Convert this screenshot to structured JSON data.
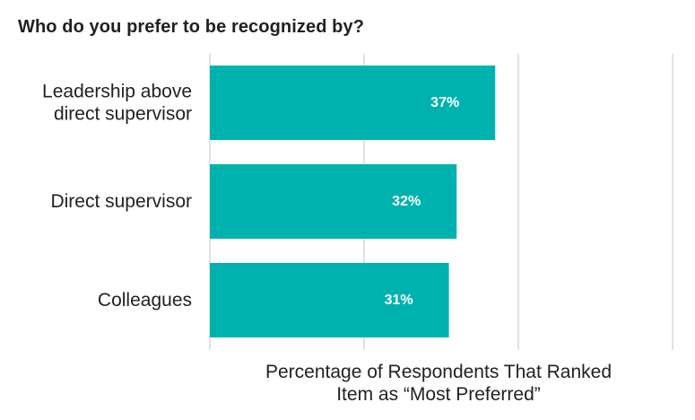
{
  "chart_data": {
    "type": "bar",
    "orientation": "horizontal",
    "title": "Who do you prefer to be recognized by?",
    "xlabel": "Percentage of Respondents That Ranked\nItem as “Most Preferred”",
    "ylabel": "",
    "categories": [
      "Leadership above direct supervisor",
      "Direct supervisor",
      "Colleagues"
    ],
    "category_label_lines": [
      [
        "Leadership above",
        "direct supervisor"
      ],
      [
        "Direct supervisor"
      ],
      [
        "Colleagues"
      ]
    ],
    "values": [
      37,
      32,
      31
    ],
    "data_labels": [
      "37%",
      "32%",
      "31%"
    ],
    "xlim": [
      0,
      60
    ],
    "grid": "vertical",
    "bar_color": "#00b2ad",
    "grid_color": "#d9d9d9",
    "label_color": "#ffffff"
  }
}
